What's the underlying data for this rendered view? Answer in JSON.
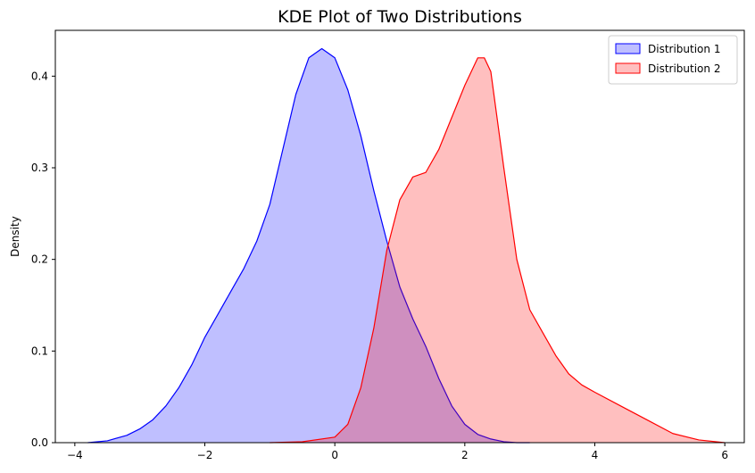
{
  "chart_data": {
    "type": "area",
    "title": "KDE Plot of Two Distributions",
    "xlabel": "",
    "ylabel": "Density",
    "xlim": [
      -4.3,
      6.3
    ],
    "ylim": [
      0,
      0.45
    ],
    "xticks": [
      -4,
      -2,
      0,
      2,
      4,
      6
    ],
    "xtick_labels": [
      "−4",
      "−2",
      "0",
      "2",
      "4",
      "6"
    ],
    "yticks": [
      0.0,
      0.1,
      0.2,
      0.3,
      0.4
    ],
    "ytick_labels": [
      "0.0",
      "0.1",
      "0.2",
      "0.3",
      "0.4"
    ],
    "grid": false,
    "legend_position": "top-right",
    "series": [
      {
        "name": "Distribution 1",
        "line_color": "#0000ff",
        "fill_color": "#0000ff",
        "fill_opacity": 0.25,
        "x": [
          -3.8,
          -3.5,
          -3.2,
          -3.0,
          -2.8,
          -2.6,
          -2.4,
          -2.2,
          -2.0,
          -1.8,
          -1.6,
          -1.4,
          -1.2,
          -1.0,
          -0.8,
          -0.6,
          -0.4,
          -0.2,
          0.0,
          0.2,
          0.4,
          0.6,
          0.8,
          1.0,
          1.2,
          1.4,
          1.6,
          1.8,
          2.0,
          2.2,
          2.4,
          2.6,
          2.8,
          3.0
        ],
        "y": [
          0.0,
          0.002,
          0.008,
          0.015,
          0.025,
          0.04,
          0.06,
          0.085,
          0.115,
          0.14,
          0.165,
          0.19,
          0.22,
          0.26,
          0.32,
          0.38,
          0.42,
          0.43,
          0.42,
          0.385,
          0.335,
          0.275,
          0.22,
          0.17,
          0.135,
          0.105,
          0.07,
          0.04,
          0.02,
          0.009,
          0.004,
          0.001,
          0.0,
          0.0
        ]
      },
      {
        "name": "Distribution 2",
        "line_color": "#ff0000",
        "fill_color": "#ff0000",
        "fill_opacity": 0.25,
        "x": [
          -1.0,
          -0.5,
          0.0,
          0.2,
          0.4,
          0.6,
          0.8,
          1.0,
          1.2,
          1.4,
          1.6,
          1.8,
          2.0,
          2.2,
          2.3,
          2.4,
          2.6,
          2.8,
          3.0,
          3.2,
          3.4,
          3.6,
          3.8,
          4.0,
          4.4,
          4.8,
          5.2,
          5.6,
          6.0
        ],
        "y": [
          0.0,
          0.001,
          0.006,
          0.02,
          0.06,
          0.125,
          0.21,
          0.265,
          0.29,
          0.295,
          0.32,
          0.355,
          0.39,
          0.42,
          0.42,
          0.405,
          0.3,
          0.2,
          0.145,
          0.12,
          0.095,
          0.075,
          0.063,
          0.055,
          0.04,
          0.025,
          0.01,
          0.003,
          0.0
        ]
      }
    ]
  }
}
